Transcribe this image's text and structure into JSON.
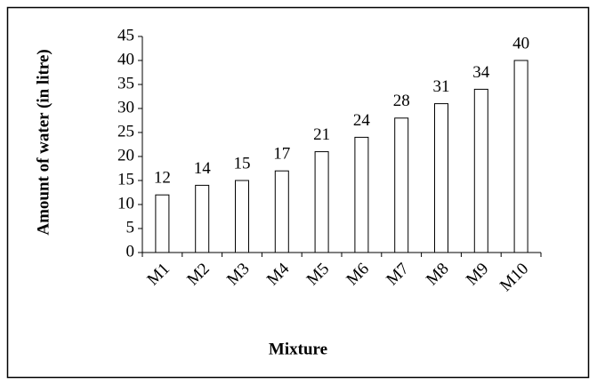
{
  "chart_data": {
    "type": "bar",
    "x_label": "Mixture",
    "y_label": "Amount of water (in litre)",
    "categories": [
      "M1",
      "M2",
      "M3",
      "M4",
      "M5",
      "M6",
      "M7",
      "M8",
      "M9",
      "M10"
    ],
    "values": [
      12,
      14,
      15,
      17,
      21,
      24,
      28,
      31,
      34,
      40
    ],
    "color": "#ffffff",
    "ylim": [
      0,
      45
    ],
    "yticks": [
      0,
      5,
      10,
      15,
      20,
      25,
      30,
      35,
      40,
      45
    ],
    "grid": false
  }
}
